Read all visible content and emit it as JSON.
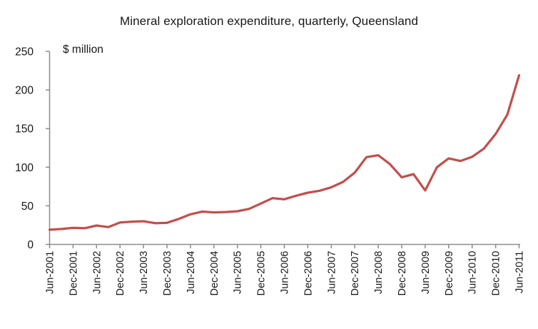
{
  "chart_data": {
    "type": "line",
    "title": "Mineral exploration expenditure, quarterly, Queensland",
    "unit_label": "$ million",
    "x": [
      "Jun-2001",
      "Sep-2001",
      "Dec-2001",
      "Mar-2002",
      "Jun-2002",
      "Sep-2002",
      "Dec-2002",
      "Mar-2003",
      "Jun-2003",
      "Sep-2003",
      "Dec-2003",
      "Mar-2004",
      "Jun-2004",
      "Sep-2004",
      "Dec-2004",
      "Mar-2005",
      "Jun-2005",
      "Sep-2005",
      "Dec-2005",
      "Mar-2006",
      "Jun-2006",
      "Sep-2006",
      "Dec-2006",
      "Mar-2007",
      "Jun-2007",
      "Sep-2007",
      "Dec-2007",
      "Mar-2008",
      "Jun-2008",
      "Sep-2008",
      "Dec-2008",
      "Mar-2009",
      "Jun-2009",
      "Sep-2009",
      "Dec-2009",
      "Mar-2010",
      "Jun-2010",
      "Sep-2010",
      "Dec-2010",
      "Mar-2011",
      "Jun-2011"
    ],
    "values": [
      19,
      20,
      21.5,
      21,
      24.5,
      22.5,
      28.5,
      29.5,
      30,
      27.5,
      28,
      33,
      39,
      42.5,
      41.5,
      42,
      43,
      46,
      53,
      60,
      58.5,
      63,
      67,
      69.5,
      74,
      81,
      93,
      113,
      115.5,
      104,
      87,
      91,
      70,
      100,
      111.5,
      108,
      113.5,
      124,
      143,
      168,
      219
    ],
    "x_tick_labels": [
      "Jun-2001",
      "Dec-2001",
      "Jun-2002",
      "Dec-2002",
      "Jun-2003",
      "Dec-2003",
      "Jun-2004",
      "Dec-2004",
      "Jun-2005",
      "Dec-2005",
      "Jun-2006",
      "Dec-2006",
      "Jun-2007",
      "Dec-2007",
      "Jun-2008",
      "Dec-2008",
      "Jun-2009",
      "Dec-2009",
      "Jun-2010",
      "Dec-2010",
      "Jun-2011"
    ],
    "y_ticks": [
      0,
      50,
      100,
      150,
      200,
      250
    ],
    "ylim": [
      0,
      250
    ],
    "grid": false,
    "legend": "none",
    "line_color": "#C0504D",
    "axis_color": "#8C8C8C",
    "text_color": "#171717"
  }
}
